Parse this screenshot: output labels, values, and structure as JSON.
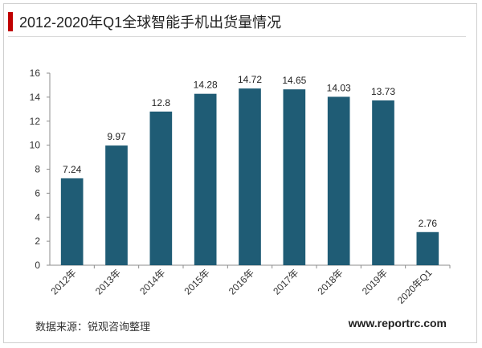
{
  "title": "2012-2020年Q1全球智能手机出货量情况",
  "source": "数据来源：锐观咨询整理",
  "website": "www.reportrc.com",
  "colors": {
    "bar": "#1f5c75",
    "accent": "#c00000"
  },
  "chart_data": {
    "type": "bar",
    "title": "2012-2020年Q1全球智能手机出货量情况",
    "categories": [
      "2012年",
      "2013年",
      "2014年",
      "2015年",
      "2016年",
      "2017年",
      "2018年",
      "2019年",
      "2020年Q1"
    ],
    "values": [
      7.24,
      9.97,
      12.8,
      14.28,
      14.72,
      14.65,
      14.03,
      13.73,
      2.76
    ],
    "value_labels": [
      "7.24",
      "9.97",
      "12.8",
      "14.28",
      "14.72",
      "14.65",
      "14.03",
      "13.73",
      "2.76"
    ],
    "ylim": [
      0,
      16
    ],
    "yticks": [
      0,
      2,
      4,
      6,
      8,
      10,
      12,
      14,
      16
    ],
    "xlabel": "",
    "ylabel": "",
    "grid": false,
    "legend": "none"
  }
}
